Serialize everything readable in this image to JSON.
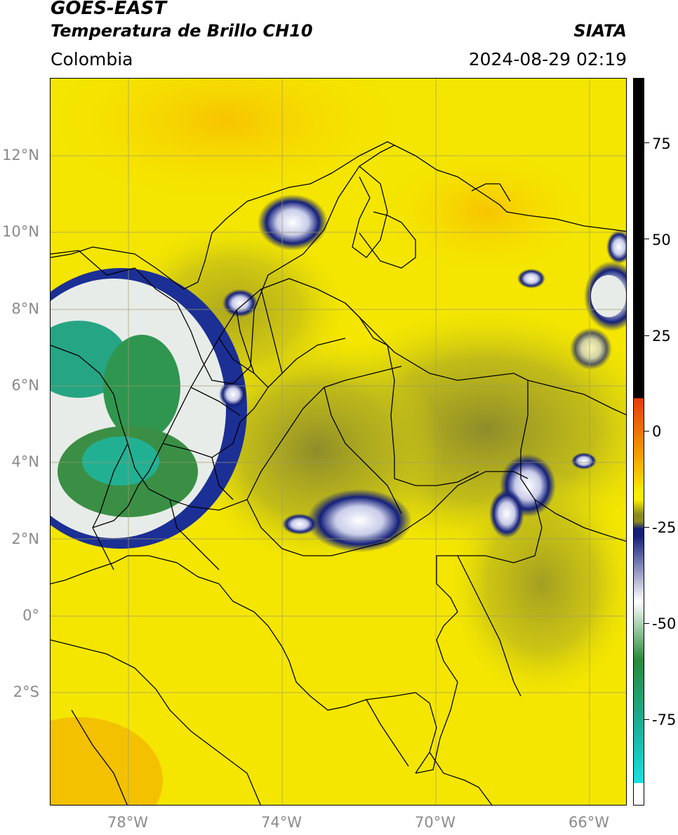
{
  "header": {
    "satellite": "GOES-EAST",
    "product": "Temperatura de Brillo CH10",
    "organization": "SIATA",
    "region": "Colombia",
    "timestamp": "2024-08-29 02:19"
  },
  "map": {
    "lat_labels": [
      "12°N",
      "10°N",
      "8°N",
      "6°N",
      "4°N",
      "2°N",
      "0°",
      "2°S"
    ],
    "lon_labels": [
      "78°W",
      "74°W",
      "70°W",
      "66°W"
    ]
  },
  "colorbar": {
    "tick_labels": [
      "75",
      "50",
      "25",
      "0",
      "-25",
      "-50",
      "-75"
    ],
    "colors": {
      "top": "#000000",
      "red": "#e53a0e",
      "orange": "#f6a000",
      "yellow": "#f7ef00",
      "olive": "#8a8a20",
      "navy": "#14207a",
      "white": "#ffffff",
      "green": "#2a8a3a",
      "teal": "#19b5a0",
      "cyan": "#19e0e0"
    }
  }
}
